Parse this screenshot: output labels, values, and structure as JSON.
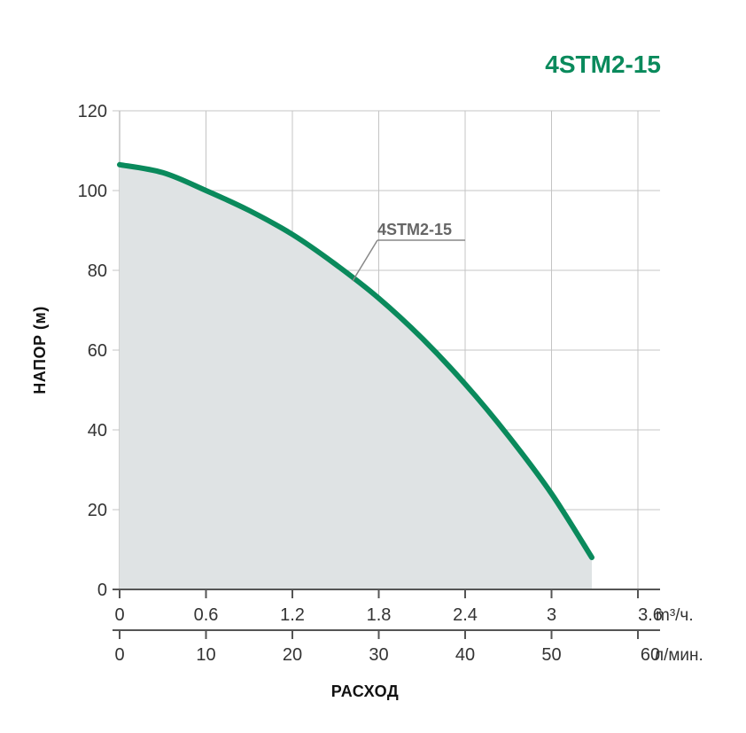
{
  "chart_data": {
    "type": "line",
    "title": "4STM2-15",
    "xlabel": "РАСХОД",
    "ylabel": "НАПОР (м)",
    "grid": true,
    "ylim": [
      0,
      120
    ],
    "yticks": [
      "0",
      "20",
      "40",
      "60",
      "80",
      "100",
      "120"
    ],
    "x_axes": [
      {
        "unit": "m³/ч.",
        "range": [
          0,
          3.6
        ],
        "ticks": [
          "0",
          "0.6",
          "1.2",
          "1.8",
          "2.4",
          "3",
          "3.6"
        ]
      },
      {
        "unit": "л/мин.",
        "range": [
          0,
          60
        ],
        "ticks": [
          "0",
          "10",
          "20",
          "30",
          "40",
          "50",
          "60"
        ]
      }
    ],
    "series": [
      {
        "name": "4STM2-15",
        "x_unit": "m³/ч.",
        "x": [
          0,
          0.3,
          0.6,
          0.9,
          1.2,
          1.5,
          1.8,
          2.1,
          2.4,
          2.7,
          3.0,
          3.28
        ],
        "y": [
          106.5,
          104.5,
          100,
          95,
          89,
          81.5,
          73,
          63,
          51.5,
          38.5,
          24,
          8
        ]
      }
    ],
    "colors": {
      "curve": "#0a8a5c",
      "fill": "#dfe3e4",
      "title": "#0a8a5c",
      "grid": "#c4c4c4",
      "axis": "#555555"
    }
  }
}
